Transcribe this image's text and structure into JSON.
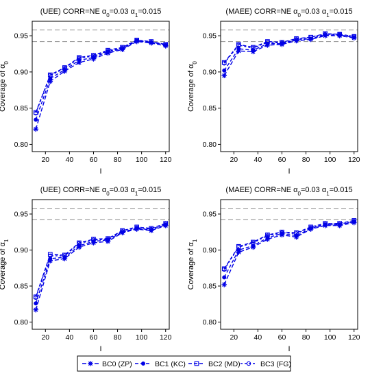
{
  "colors": {
    "series": "#0000e6",
    "ref_lines": "#a0a0a0",
    "axis": "#000000"
  },
  "legend": {
    "placement": "bottom-center",
    "items": [
      {
        "label": "BC0 (ZP)",
        "marker": "asterisk"
      },
      {
        "label": "BC1 (KC)",
        "marker": "filled-circle"
      },
      {
        "label": "BC2 (MD)",
        "marker": "open-square"
      },
      {
        "label": "BC3 (FG)",
        "marker": "open-circle"
      }
    ]
  },
  "chart_data": [
    {
      "type": "line",
      "title_prefix": "(UEE) CORR=NE ",
      "title_a0": "α",
      "title_a0_sub": "0",
      "title_a0_val": "=0.03 ",
      "title_a1": "α",
      "title_a1_sub": "1",
      "title_a1_val": "=0.015",
      "xlabel": "I",
      "ylabel_main": "Coverage of α",
      "ylabel_sub": "0",
      "xlim": [
        9,
        123
      ],
      "ylim": [
        0.79,
        0.97
      ],
      "xticks": [
        20,
        40,
        60,
        80,
        100,
        120
      ],
      "yticks": [
        0.8,
        0.85,
        0.9,
        0.95
      ],
      "ytick_labels": [
        "0.80",
        "0.85",
        "0.90",
        "0.95"
      ],
      "ref_lines": [
        0.942,
        0.958
      ],
      "x": [
        12,
        24,
        36,
        48,
        60,
        72,
        84,
        96,
        108,
        120
      ],
      "series": [
        {
          "name": "BC0 (ZP)",
          "marker": "asterisk",
          "values": [
            0.821,
            0.887,
            0.901,
            0.913,
            0.918,
            0.926,
            0.931,
            0.942,
            0.94,
            0.936
          ]
        },
        {
          "name": "BC1 (KC)",
          "marker": "filled-circle",
          "values": [
            0.834,
            0.891,
            0.903,
            0.916,
            0.92,
            0.928,
            0.932,
            0.943,
            0.941,
            0.937
          ]
        },
        {
          "name": "BC2 (MD)",
          "marker": "open-square",
          "values": [
            0.844,
            0.896,
            0.906,
            0.92,
            0.923,
            0.93,
            0.934,
            0.944,
            0.942,
            0.938
          ]
        },
        {
          "name": "BC3 (FG)",
          "marker": "open-circle",
          "values": [
            0.843,
            0.895,
            0.905,
            0.919,
            0.922,
            0.929,
            0.933,
            0.944,
            0.941,
            0.938
          ]
        }
      ]
    },
    {
      "type": "line",
      "title_prefix": "(MAEE) CORR=NE ",
      "title_a0": "α",
      "title_a0_sub": "0",
      "title_a0_val": "=0.03 ",
      "title_a1": "α",
      "title_a1_sub": "1",
      "title_a1_val": "=0.015",
      "xlabel": "I",
      "ylabel_main": "Coverage of α",
      "ylabel_sub": "0",
      "xlim": [
        9,
        123
      ],
      "ylim": [
        0.79,
        0.97
      ],
      "xticks": [
        20,
        40,
        60,
        80,
        100,
        120
      ],
      "yticks": [
        0.8,
        0.85,
        0.9,
        0.95
      ],
      "ytick_labels": [
        "0.80",
        "0.85",
        "0.90",
        "0.95"
      ],
      "ref_lines": [
        0.942,
        0.958
      ],
      "x": [
        12,
        24,
        36,
        48,
        60,
        72,
        84,
        96,
        108,
        120
      ],
      "series": [
        {
          "name": "BC0 (ZP)",
          "marker": "asterisk",
          "values": [
            0.895,
            0.929,
            0.928,
            0.937,
            0.938,
            0.943,
            0.945,
            0.95,
            0.95,
            0.947
          ]
        },
        {
          "name": "BC1 (KC)",
          "marker": "filled-circle",
          "values": [
            0.902,
            0.932,
            0.93,
            0.939,
            0.939,
            0.944,
            0.946,
            0.951,
            0.951,
            0.948
          ]
        },
        {
          "name": "BC2 (MD)",
          "marker": "open-square",
          "values": [
            0.913,
            0.938,
            0.934,
            0.942,
            0.941,
            0.946,
            0.948,
            0.953,
            0.952,
            0.949
          ]
        },
        {
          "name": "BC3 (FG)",
          "marker": "open-circle",
          "values": [
            0.912,
            0.937,
            0.933,
            0.941,
            0.94,
            0.945,
            0.948,
            0.952,
            0.952,
            0.949
          ]
        }
      ]
    },
    {
      "type": "line",
      "title_prefix": "(UEE) CORR=NE ",
      "title_a0": "α",
      "title_a0_sub": "0",
      "title_a0_val": "=0.03 ",
      "title_a1": "α",
      "title_a1_sub": "1",
      "title_a1_val": "=0.015",
      "xlabel": "I",
      "ylabel_main": "Coverage of α",
      "ylabel_sub": "1",
      "xlim": [
        9,
        123
      ],
      "ylim": [
        0.79,
        0.97
      ],
      "xticks": [
        20,
        40,
        60,
        80,
        100,
        120
      ],
      "yticks": [
        0.8,
        0.85,
        0.9,
        0.95
      ],
      "ytick_labels": [
        "0.80",
        "0.85",
        "0.90",
        "0.95"
      ],
      "ref_lines": [
        0.942,
        0.958
      ],
      "x": [
        12,
        24,
        36,
        48,
        60,
        72,
        84,
        96,
        108,
        120
      ],
      "series": [
        {
          "name": "BC0 (ZP)",
          "marker": "asterisk",
          "values": [
            0.817,
            0.885,
            0.888,
            0.904,
            0.91,
            0.912,
            0.924,
            0.929,
            0.927,
            0.934
          ]
        },
        {
          "name": "BC1 (KC)",
          "marker": "filled-circle",
          "values": [
            0.826,
            0.888,
            0.89,
            0.906,
            0.912,
            0.914,
            0.925,
            0.93,
            0.928,
            0.935
          ]
        },
        {
          "name": "BC2 (MD)",
          "marker": "open-square",
          "values": [
            0.835,
            0.894,
            0.893,
            0.91,
            0.915,
            0.916,
            0.927,
            0.932,
            0.93,
            0.937
          ]
        },
        {
          "name": "BC3 (FG)",
          "marker": "open-circle",
          "values": [
            0.834,
            0.892,
            0.892,
            0.909,
            0.914,
            0.915,
            0.926,
            0.931,
            0.929,
            0.936
          ]
        }
      ]
    },
    {
      "type": "line",
      "title_prefix": "(MAEE) CORR=NE ",
      "title_a0": "α",
      "title_a0_sub": "0",
      "title_a0_val": "=0.03 ",
      "title_a1": "α",
      "title_a1_sub": "1",
      "title_a1_val": "=0.015",
      "xlabel": "I",
      "ylabel_main": "Coverage of α",
      "ylabel_sub": "1",
      "xlim": [
        9,
        123
      ],
      "ylim": [
        0.79,
        0.97
      ],
      "xticks": [
        20,
        40,
        60,
        80,
        100,
        120
      ],
      "yticks": [
        0.8,
        0.85,
        0.9,
        0.95
      ],
      "ytick_labels": [
        "0.80",
        "0.85",
        "0.90",
        "0.95"
      ],
      "ref_lines": [
        0.942,
        0.958
      ],
      "x": [
        12,
        24,
        36,
        48,
        60,
        72,
        84,
        96,
        108,
        120
      ],
      "series": [
        {
          "name": "BC0 (ZP)",
          "marker": "asterisk",
          "values": [
            0.852,
            0.897,
            0.904,
            0.915,
            0.921,
            0.918,
            0.929,
            0.934,
            0.934,
            0.938
          ]
        },
        {
          "name": "BC1 (KC)",
          "marker": "filled-circle",
          "values": [
            0.862,
            0.9,
            0.906,
            0.917,
            0.923,
            0.92,
            0.93,
            0.935,
            0.935,
            0.939
          ]
        },
        {
          "name": "BC2 (MD)",
          "marker": "open-square",
          "values": [
            0.874,
            0.905,
            0.911,
            0.921,
            0.925,
            0.924,
            0.932,
            0.937,
            0.937,
            0.941
          ]
        },
        {
          "name": "BC3 (FG)",
          "marker": "open-circle",
          "values": [
            0.873,
            0.904,
            0.91,
            0.92,
            0.924,
            0.923,
            0.931,
            0.936,
            0.936,
            0.94
          ]
        }
      ]
    }
  ]
}
